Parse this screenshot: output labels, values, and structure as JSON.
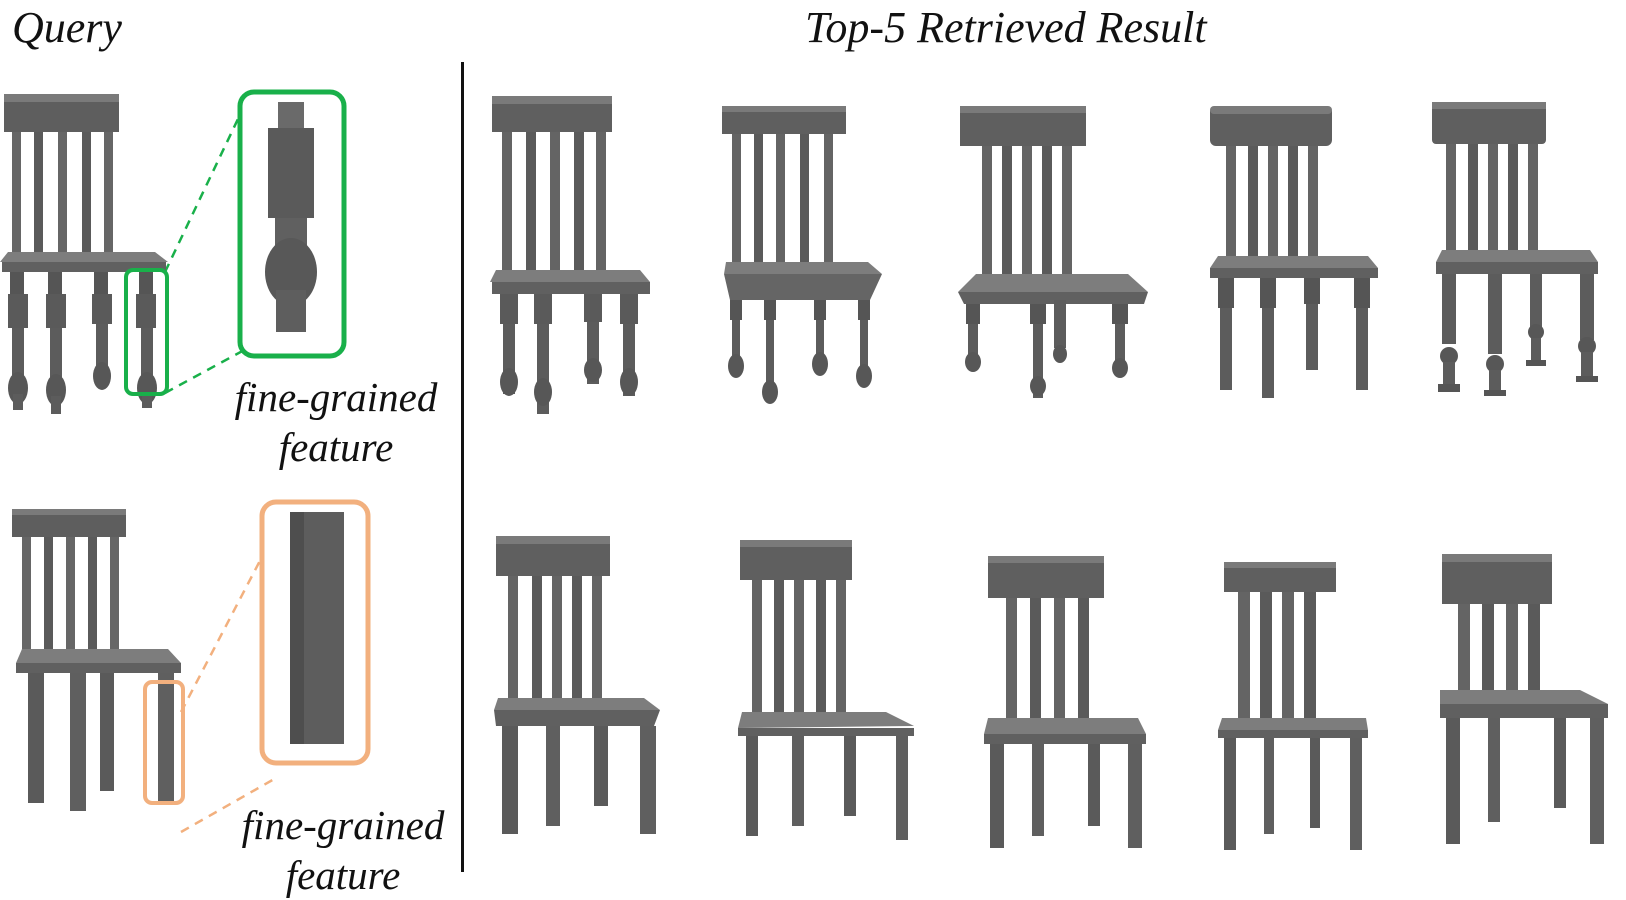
{
  "figure": {
    "query_title": "Query",
    "results_title": "Top-5 Retrieved Result",
    "callouts": [
      {
        "line1": "fine-grained",
        "line2": "feature",
        "color": "#19b04a",
        "style": "turned-leg"
      },
      {
        "line1": "fine-grained",
        "line2": "feature",
        "color": "#f2b07e",
        "style": "square-leg"
      }
    ],
    "rows": [
      {
        "query": {
          "back_slats": 5,
          "leg_style": "turned"
        },
        "results": [
          {
            "rank": 1,
            "back_slats": 5,
            "leg_style": "turned"
          },
          {
            "rank": 2,
            "back_slats": 5,
            "leg_style": "turned"
          },
          {
            "rank": 3,
            "back_slats": 5,
            "leg_style": "turned"
          },
          {
            "rank": 4,
            "back_slats": 5,
            "leg_style": "turned"
          },
          {
            "rank": 5,
            "back_slats": 5,
            "leg_style": "turned"
          }
        ]
      },
      {
        "query": {
          "back_slats": 5,
          "leg_style": "square"
        },
        "results": [
          {
            "rank": 1,
            "back_slats": 5,
            "leg_style": "square"
          },
          {
            "rank": 2,
            "back_slats": 5,
            "leg_style": "square"
          },
          {
            "rank": 3,
            "back_slats": 4,
            "leg_style": "square"
          },
          {
            "rank": 4,
            "back_slats": 4,
            "leg_style": "square"
          },
          {
            "rank": 5,
            "back_slats": 4,
            "leg_style": "square"
          }
        ]
      }
    ]
  },
  "colors": {
    "chair_dark": "#555555",
    "chair_mid": "#6b6b6b",
    "chair_light": "#808080",
    "divider": "#111111"
  }
}
